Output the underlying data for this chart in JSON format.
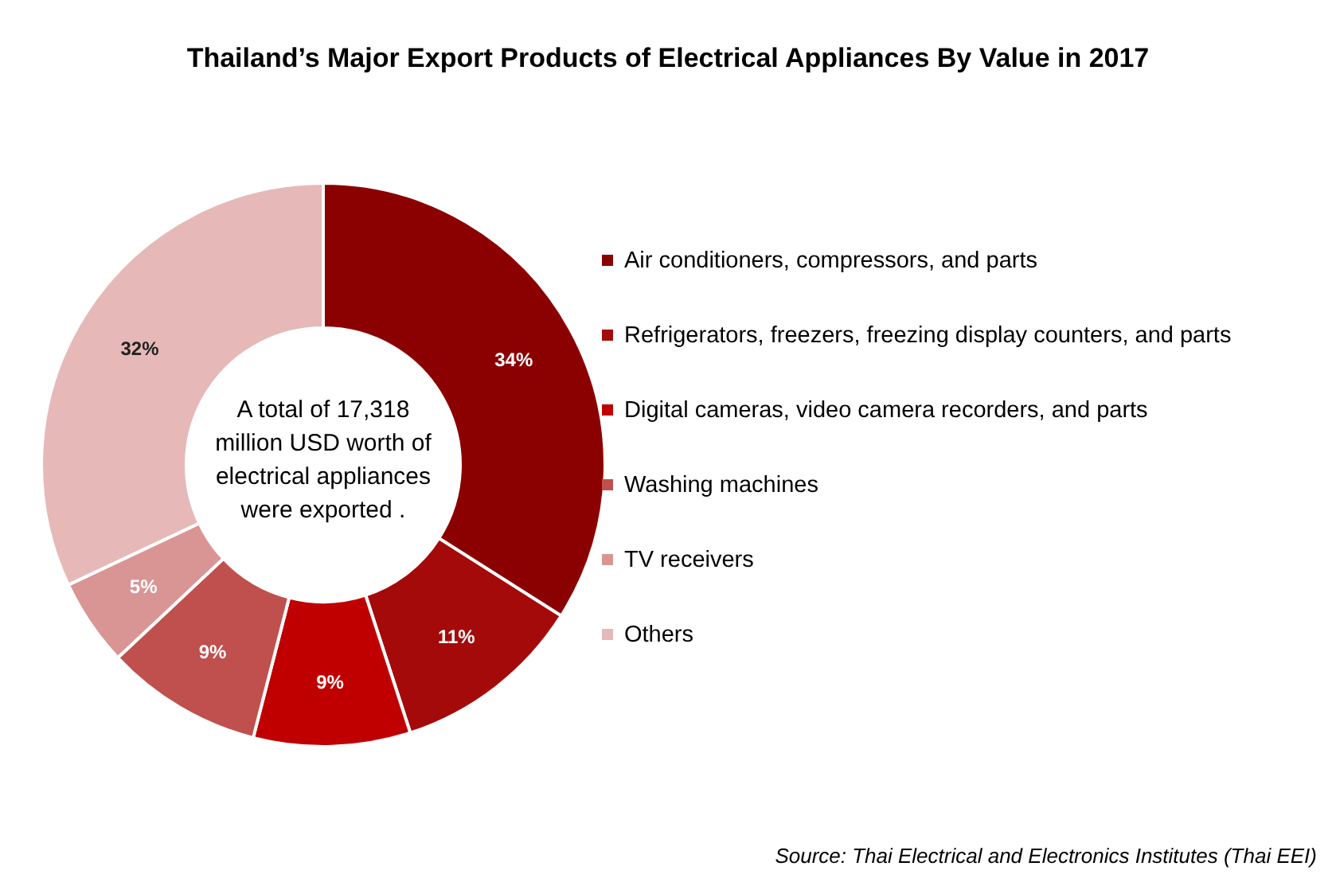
{
  "chart_data": {
    "type": "donut",
    "title": "Thailand’s Major Export Products of Electrical Appliances By Value in 2017",
    "categories": [
      "Air conditioners, compressors, and parts",
      "Refrigerators, freezers, freezing display counters, and parts",
      "Digital cameras, video camera recorders, and parts",
      "Washing machines",
      "TV receivers",
      "Others"
    ],
    "values": [
      34,
      11,
      9,
      9,
      5,
      32
    ],
    "colors": [
      "#8b0000",
      "#a50a0a",
      "#c00000",
      "#c0504d",
      "#d99594",
      "#e6b9b8"
    ],
    "value_labels": [
      "34%",
      "11%",
      "9%",
      "9%",
      "5%",
      "32%"
    ],
    "legend": "right",
    "annotations": [
      "A total of 17,318\nmillion USD worth of\nelectrical appliances\nwere  exported .",
      "Source: Thai Electrical and Electronics Institutes (Thai EEI)"
    ]
  }
}
